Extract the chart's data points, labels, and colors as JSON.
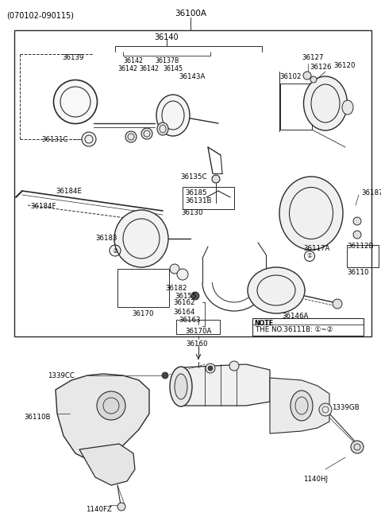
{
  "bg_color": "#ffffff",
  "line_color": "#2a2a2a",
  "text_color": "#000000",
  "fig_width": 4.8,
  "fig_height": 6.55,
  "dpi": 100,
  "header_text": "(070102-090115)",
  "main_label": "36100A",
  "note_text": "THE NO.36111B: ①~②"
}
